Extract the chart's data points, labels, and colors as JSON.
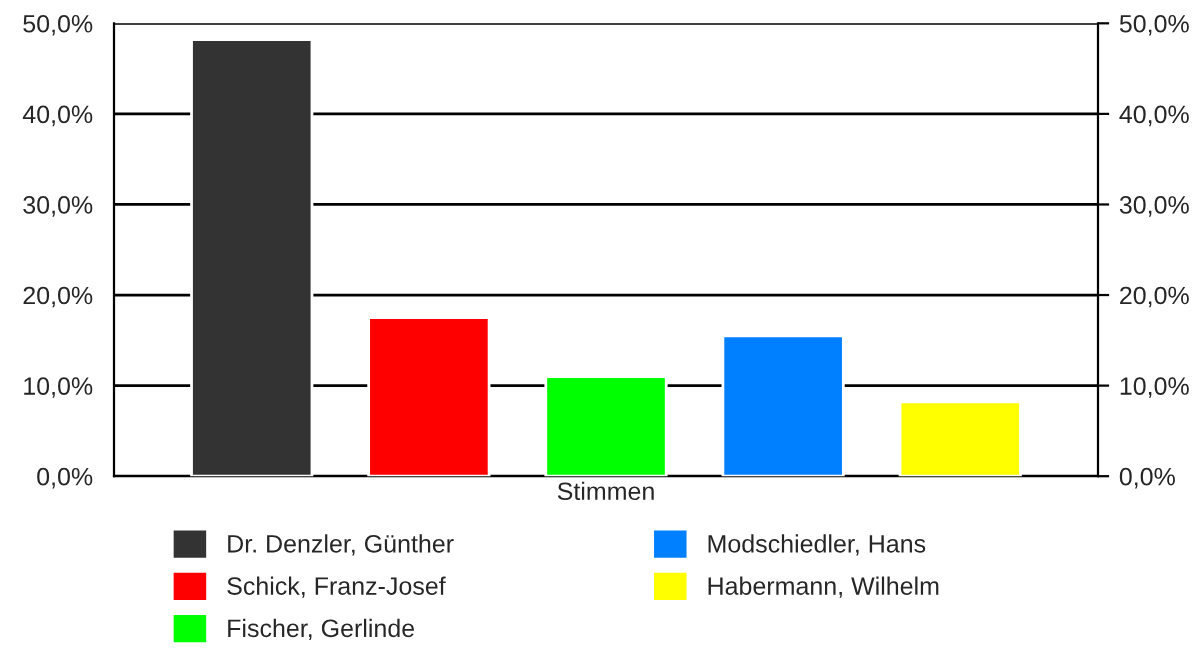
{
  "chart_data": {
    "type": "bar",
    "categories": [
      "Stimmen"
    ],
    "series": [
      {
        "name": "Dr. Denzler, Günther",
        "color": "#333333",
        "values": [
          48.2
        ]
      },
      {
        "name": "Schick, Franz-Josef",
        "color": "#ff0000",
        "values": [
          17.5
        ]
      },
      {
        "name": "Fischer, Gerlinde",
        "color": "#00ff00",
        "values": [
          11.0
        ]
      },
      {
        "name": "Modschiedler, Hans",
        "color": "#0080ff",
        "values": [
          15.5
        ]
      },
      {
        "name": "Habermann, Wilhelm",
        "color": "#ffff00",
        "values": [
          8.2
        ]
      }
    ],
    "ylim": [
      0,
      50
    ],
    "yticks": [
      {
        "value": 0,
        "label": "0,0%"
      },
      {
        "value": 10,
        "label": "10,0%"
      },
      {
        "value": 20,
        "label": "20,0%"
      },
      {
        "value": 30,
        "label": "30,0%"
      },
      {
        "value": 40,
        "label": "40,0%"
      },
      {
        "value": 50,
        "label": "50,0%"
      }
    ],
    "grid": "y",
    "legend": "bottom"
  }
}
